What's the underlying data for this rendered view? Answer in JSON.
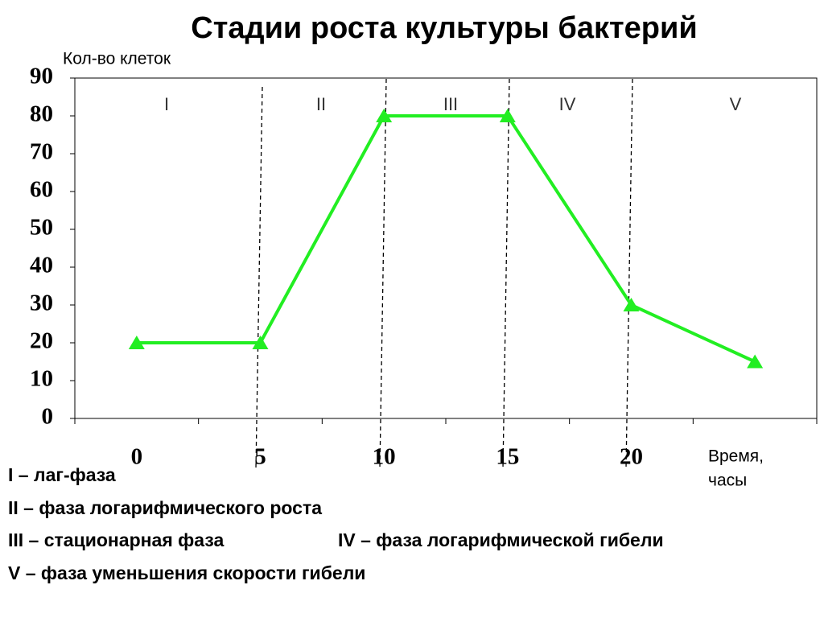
{
  "chart_data": {
    "type": "line",
    "title": "Стадии роста культуры бактерий",
    "y_label": "Кол-во клеток",
    "x_label": [
      "Время,",
      "часы"
    ],
    "categories": [
      "0",
      "5",
      "10",
      "15",
      "20",
      null
    ],
    "series": [
      {
        "name": "Кол-во клеток",
        "color": "#22ee22",
        "values": [
          20,
          20,
          80,
          80,
          30,
          15
        ]
      }
    ],
    "ylim": [
      0,
      90
    ],
    "yticks": [
      0,
      10,
      20,
      30,
      40,
      50,
      60,
      70,
      80,
      90
    ],
    "phases": [
      "I",
      "II",
      "III",
      "IV",
      "V"
    ],
    "annotations": [
      "I – лаг-фаза",
      "II – фаза логарифмического роста",
      "III – стационарная фаза",
      "IV – фаза логарифмической гибели",
      "V – фаза уменьшения скорости гибели"
    ]
  }
}
